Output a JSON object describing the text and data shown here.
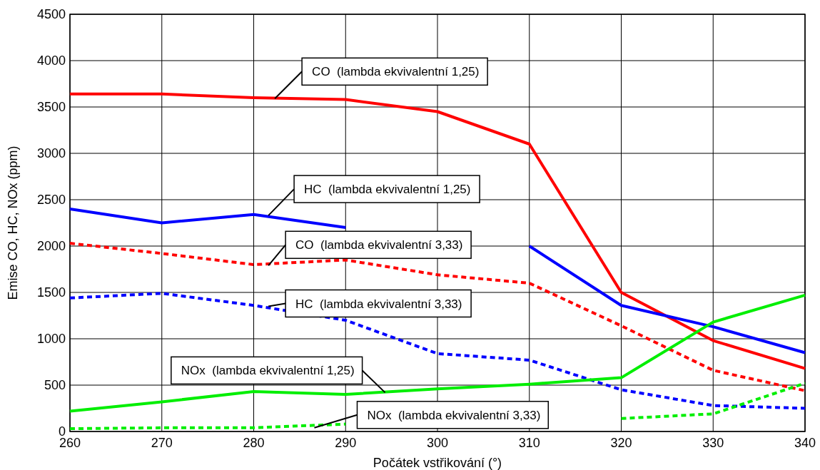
{
  "chart_data": {
    "type": "line",
    "xlabel": "Počátek vstřikování (°)",
    "ylabel": "Emise CO, HC, NOx (ppm)",
    "x": [
      260,
      270,
      280,
      290,
      300,
      310,
      320,
      330,
      340
    ],
    "xlim": [
      260,
      340
    ],
    "xticks": [
      260,
      270,
      280,
      290,
      300,
      310,
      320,
      330,
      340
    ],
    "ylim": [
      0,
      4500
    ],
    "yticks": [
      0,
      500,
      1000,
      1500,
      2000,
      2500,
      3000,
      3500,
      4000,
      4500
    ],
    "grid": true,
    "marker": "none",
    "series": [
      {
        "color": "#ff0000",
        "line_style": "solid",
        "values": [
          3640,
          3640,
          3600,
          3580,
          3450,
          3100,
          1500,
          980,
          680
        ]
      },
      {
        "color": "#0000ff",
        "line_style": "solid",
        "values": [
          2400,
          2250,
          2340,
          2200,
          null,
          2000,
          1360,
          1130,
          850
        ]
      },
      {
        "color": "#ff0000",
        "line_style": "dashed",
        "values": [
          2030,
          1920,
          1800,
          1850,
          1690,
          1600,
          1140,
          660,
          440
        ]
      },
      {
        "color": "#0000ff",
        "line_style": "dashed",
        "values": [
          1440,
          1490,
          1360,
          1200,
          840,
          770,
          450,
          280,
          250
        ]
      },
      {
        "color": "#00ee00",
        "line_style": "solid",
        "values": [
          220,
          320,
          430,
          400,
          460,
          510,
          580,
          1180,
          1470
        ]
      },
      {
        "color": "#00ee00",
        "line_style": "dashed",
        "values": [
          30,
          40,
          40,
          80,
          null,
          null,
          140,
          190,
          520
        ]
      }
    ],
    "annotations": [
      {
        "text": "CO  (lambda ekvivalentní 1,25)",
        "x": 282.3,
        "y": 3590
      },
      {
        "text": "HC  (lambda ekvivalentní 1,25)",
        "x": 281.6,
        "y": 2330
      },
      {
        "text": "CO  (lambda ekvivalentní 3,33)",
        "x": 281.6,
        "y": 1790
      },
      {
        "text": "HC  (lambda ekvivalentní 3,33)",
        "x": 281.6,
        "y": 1350
      },
      {
        "text": "NOx  (lambda ekvivalentní 1,25)",
        "x": 294.3,
        "y": 420
      },
      {
        "text": "NOx  (lambda ekvivalentní 3,33)",
        "x": 286.6,
        "y": 40
      }
    ]
  }
}
